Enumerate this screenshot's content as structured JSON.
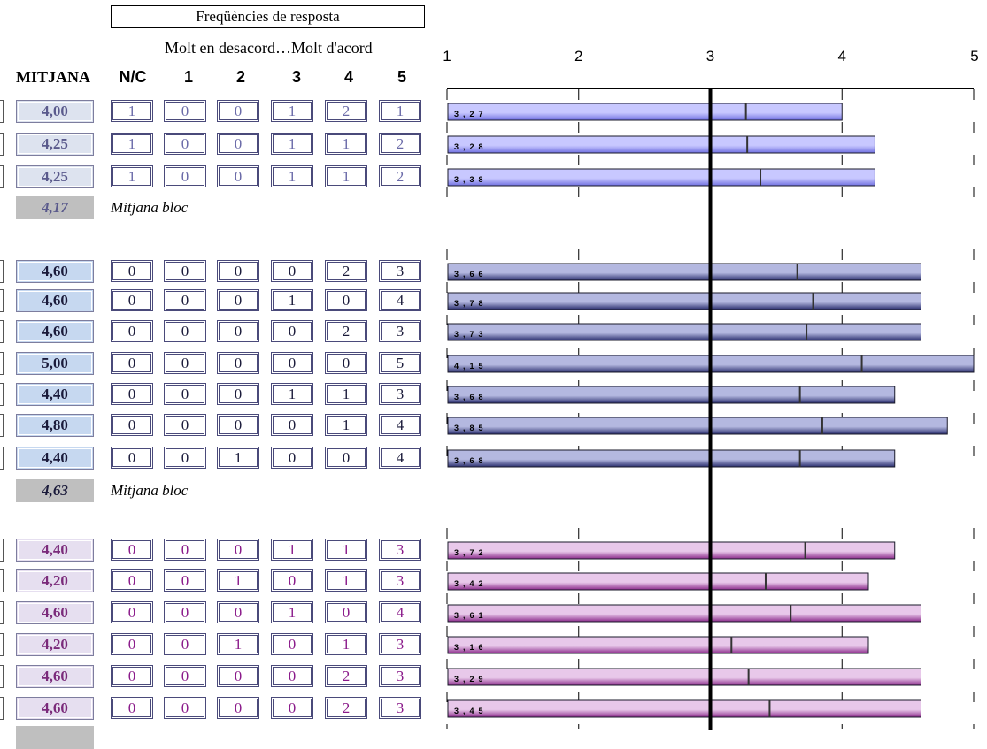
{
  "header": {
    "title": "Freqüències de resposta",
    "subtitle": "Molt en desacord…Molt d'acord",
    "col_mitjana": "MITJANA",
    "col_nc": "N/C",
    "col_1": "1",
    "col_2": "2",
    "col_3": "3",
    "col_4": "4",
    "col_5": "5"
  },
  "bloc_label": "Mitjana bloc",
  "blocks": [
    {
      "mean": "4,17",
      "colors": {
        "mean_bg": "#dde3ef",
        "mean_text": "#5a5a8c",
        "cell_text": "#6a6aa8",
        "bar_light": "#c8c8ff",
        "bar_dark": "#7070e0",
        "label_text": "#000"
      },
      "rows": [
        {
          "mean": "4,00",
          "freq": [
            "1",
            "0",
            "0",
            "1",
            "2",
            "1"
          ],
          "ref": "3,27"
        },
        {
          "mean": "4,25",
          "freq": [
            "1",
            "0",
            "0",
            "1",
            "1",
            "2"
          ],
          "ref": "3,28"
        },
        {
          "mean": "4,25",
          "freq": [
            "1",
            "0",
            "0",
            "1",
            "1",
            "2"
          ],
          "ref": "3,38"
        }
      ]
    },
    {
      "mean": "4,63",
      "colors": {
        "mean_bg": "#c6d8f0",
        "mean_text": "#1a1a3a",
        "cell_text": "#1a1a3a",
        "bar_light": "#b4b8e0",
        "bar_dark": "#2a2e6e",
        "label_text": "#000"
      },
      "rows": [
        {
          "mean": "4,60",
          "freq": [
            "0",
            "0",
            "0",
            "0",
            "2",
            "3"
          ],
          "ref": "3,66"
        },
        {
          "mean": "4,60",
          "freq": [
            "0",
            "0",
            "0",
            "1",
            "0",
            "4"
          ],
          "ref": "3,78"
        },
        {
          "mean": "4,60",
          "freq": [
            "0",
            "0",
            "0",
            "0",
            "2",
            "3"
          ],
          "ref": "3,73"
        },
        {
          "mean": "5,00",
          "freq": [
            "0",
            "0",
            "0",
            "0",
            "0",
            "5"
          ],
          "ref": "4,15"
        },
        {
          "mean": "4,40",
          "freq": [
            "0",
            "0",
            "0",
            "1",
            "1",
            "3"
          ],
          "ref": "3,68"
        },
        {
          "mean": "4,80",
          "freq": [
            "0",
            "0",
            "0",
            "0",
            "1",
            "4"
          ],
          "ref": "3,85"
        },
        {
          "mean": "4,40",
          "freq": [
            "0",
            "0",
            "1",
            "0",
            "0",
            "4"
          ],
          "ref": "3,68"
        }
      ]
    },
    {
      "mean": "",
      "colors": {
        "mean_bg": "#e6dff0",
        "mean_text": "#7a2a7a",
        "cell_text": "#8a1a8a",
        "bar_light": "#e8c8ea",
        "bar_dark": "#8a2a8a",
        "label_text": "#000"
      },
      "rows": [
        {
          "mean": "4,40",
          "freq": [
            "0",
            "0",
            "0",
            "1",
            "1",
            "3"
          ],
          "ref": "3,72"
        },
        {
          "mean": "4,20",
          "freq": [
            "0",
            "0",
            "1",
            "0",
            "1",
            "3"
          ],
          "ref": "3,42"
        },
        {
          "mean": "4,60",
          "freq": [
            "0",
            "0",
            "0",
            "1",
            "0",
            "4"
          ],
          "ref": "3,61"
        },
        {
          "mean": "4,20",
          "freq": [
            "0",
            "0",
            "1",
            "0",
            "1",
            "3"
          ],
          "ref": "3,16"
        },
        {
          "mean": "4,60",
          "freq": [
            "0",
            "0",
            "0",
            "0",
            "2",
            "3"
          ],
          "ref": "3,29"
        },
        {
          "mean": "4,60",
          "freq": [
            "0",
            "0",
            "0",
            "0",
            "2",
            "3"
          ],
          "ref": "3,45"
        }
      ]
    }
  ],
  "chart_data": {
    "type": "bar",
    "orientation": "horizontal",
    "xlim": [
      1,
      5
    ],
    "x_ticks": [
      "1",
      "2",
      "3",
      "4",
      "5"
    ],
    "reference_line": 3,
    "series": [
      {
        "values": [
          4.0,
          4.25,
          4.25,
          4.6,
          4.6,
          4.6,
          5.0,
          4.4,
          4.8,
          4.4,
          4.4,
          4.2,
          4.6,
          4.2,
          4.6,
          4.6
        ]
      },
      {
        "values": [
          3.27,
          3.28,
          3.38,
          3.66,
          3.78,
          3.73,
          4.15,
          3.68,
          3.85,
          3.68,
          3.72,
          3.42,
          3.61,
          3.16,
          3.29,
          3.45
        ]
      }
    ]
  }
}
